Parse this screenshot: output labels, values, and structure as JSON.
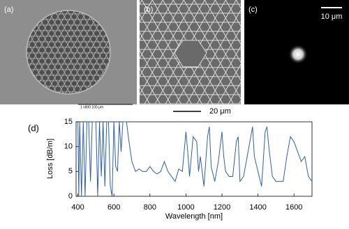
{
  "panels": {
    "a": "(a)",
    "b": "(b)",
    "c": "(c)",
    "d": "(d)"
  },
  "sem_info": "1   x800   100 μm",
  "scale_bar_b": "20 μm",
  "scale_bar_c": "10 μm",
  "chart_data": {
    "type": "line",
    "xlabel": "Wavelength [nm]",
    "ylabel": "Loss [dB/m]",
    "x": [
      400,
      405,
      410,
      420,
      430,
      440,
      450,
      460,
      470,
      480,
      490,
      500,
      510,
      520,
      530,
      540,
      550,
      560,
      570,
      580,
      590,
      600,
      610,
      620,
      630,
      640,
      650,
      660,
      670,
      680,
      700,
      720,
      740,
      760,
      780,
      800,
      820,
      840,
      860,
      880,
      900,
      920,
      940,
      960,
      980,
      1000,
      1010,
      1020,
      1040,
      1060,
      1070,
      1080,
      1100,
      1120,
      1130,
      1140,
      1160,
      1180,
      1200,
      1210,
      1220,
      1240,
      1260,
      1280,
      1290,
      1300,
      1320,
      1340,
      1360,
      1370,
      1380,
      1400,
      1420,
      1440,
      1450,
      1460,
      1480,
      1500,
      1520,
      1540,
      1560,
      1570,
      1580,
      1600,
      1620,
      1640,
      1660,
      1680,
      1700
    ],
    "series": [
      {
        "color": "#2e5fae",
        "values": [
          15,
          0,
          15,
          0,
          15,
          0,
          15,
          15,
          3,
          15,
          15,
          15,
          0,
          15,
          4,
          15,
          2,
          15,
          15,
          2,
          0,
          15,
          6,
          5,
          15,
          9,
          15,
          15,
          15,
          12,
          7,
          5,
          5.5,
          5,
          5,
          6,
          5,
          4.5,
          5,
          7,
          5,
          4,
          3,
          5.5,
          5,
          13,
          9,
          4,
          12,
          11,
          5,
          8,
          2,
          12,
          14,
          6,
          3,
          7,
          13,
          8,
          5,
          4,
          4,
          11,
          12,
          3,
          4,
          8,
          12,
          14,
          8,
          5,
          2,
          13,
          14,
          10,
          4,
          3,
          3,
          3,
          8,
          10,
          12,
          11,
          9,
          7,
          8,
          4,
          3
        ]
      }
    ],
    "xlim": [
      390,
      1700
    ],
    "ylim": [
      0,
      15
    ],
    "xticks": [
      400,
      600,
      800,
      1000,
      1200,
      1400,
      1600
    ],
    "yticks": [
      0,
      5,
      10,
      15
    ]
  }
}
